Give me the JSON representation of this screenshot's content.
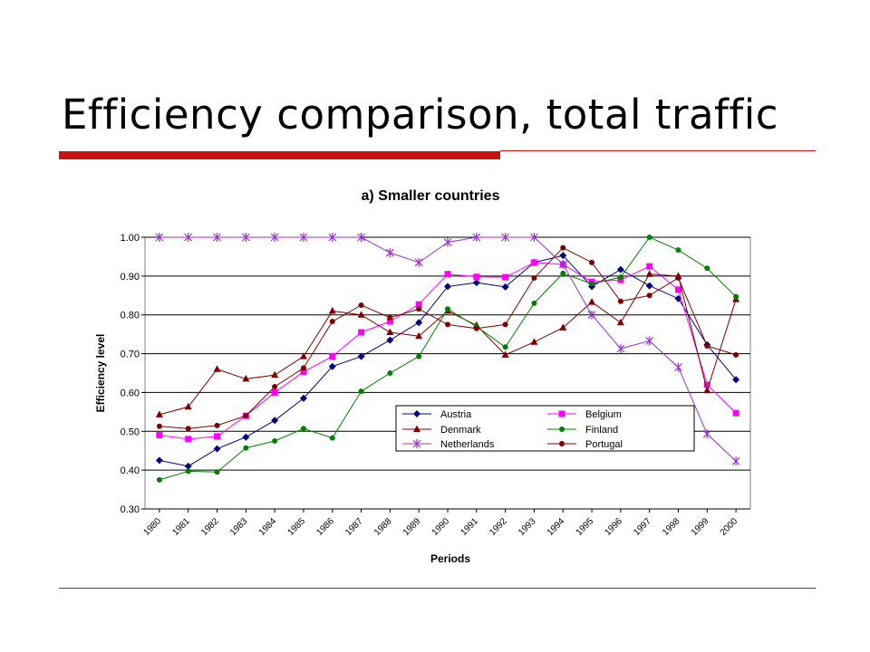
{
  "slide": {
    "title": "Efficiency comparison, total traffic"
  },
  "colors": {
    "accent": "#cc1111"
  },
  "chart_data": {
    "type": "line",
    "title": "a) Smaller countries",
    "xlabel": "Periods",
    "ylabel": "Efficiency level",
    "ylim": [
      0.3,
      1.0
    ],
    "yticks": [
      "0.30",
      "0.40",
      "0.50",
      "0.60",
      "0.70",
      "0.80",
      "0.90",
      "1.00"
    ],
    "grid": true,
    "legend_position": "center-right",
    "categories": [
      "1980",
      "1981",
      "1982",
      "1983",
      "1984",
      "1985",
      "1986",
      "1987",
      "1988",
      "1989",
      "1990",
      "1991",
      "1992",
      "1993",
      "1994",
      "1995",
      "1996",
      "1997",
      "1998",
      "1999",
      "2000"
    ],
    "series": [
      {
        "name": "Austria",
        "color": "#000080",
        "marker": "diamond",
        "values": [
          0.425,
          0.41,
          0.455,
          0.485,
          0.528,
          0.585,
          0.667,
          0.693,
          0.735,
          0.78,
          0.873,
          0.883,
          0.872,
          0.935,
          0.953,
          0.873,
          0.917,
          0.875,
          0.842,
          0.723,
          0.633
        ]
      },
      {
        "name": "Belgium",
        "color": "#ff00ff",
        "marker": "square",
        "values": [
          0.49,
          0.48,
          0.487,
          0.54,
          0.6,
          0.653,
          0.693,
          0.755,
          0.783,
          0.827,
          0.905,
          0.898,
          0.897,
          0.935,
          0.93,
          0.885,
          0.89,
          0.925,
          0.865,
          0.62,
          0.547
        ]
      },
      {
        "name": "Denmark",
        "color": "#800000",
        "marker": "triangle",
        "values": [
          0.543,
          0.563,
          0.66,
          0.635,
          0.645,
          0.693,
          0.81,
          0.8,
          0.755,
          0.745,
          0.81,
          0.773,
          0.697,
          0.73,
          0.767,
          0.833,
          0.78,
          0.905,
          0.9,
          0.605,
          0.84
        ]
      },
      {
        "name": "Finland",
        "color": "#008000",
        "marker": "circle",
        "values": [
          0.375,
          0.397,
          0.395,
          0.457,
          0.475,
          0.507,
          0.483,
          0.603,
          0.65,
          0.693,
          0.815,
          0.77,
          0.717,
          0.83,
          0.907,
          0.88,
          0.897,
          1.0,
          0.967,
          0.92,
          0.847
        ]
      },
      {
        "name": "Netherlands",
        "color": "#9933cc",
        "marker": "star",
        "values": [
          1.0,
          1.0,
          1.0,
          1.0,
          1.0,
          1.0,
          1.0,
          1.0,
          0.96,
          0.935,
          0.987,
          1.0,
          1.0,
          1.0,
          0.93,
          0.8,
          0.713,
          0.733,
          0.665,
          0.493,
          0.423
        ]
      },
      {
        "name": "Portugal",
        "color": "#800000",
        "marker": "circle",
        "values": [
          0.513,
          0.507,
          0.515,
          0.54,
          0.615,
          0.663,
          0.783,
          0.825,
          0.793,
          0.815,
          0.775,
          0.765,
          0.775,
          0.895,
          0.973,
          0.935,
          0.835,
          0.85,
          0.895,
          0.72,
          0.697
        ]
      }
    ]
  }
}
